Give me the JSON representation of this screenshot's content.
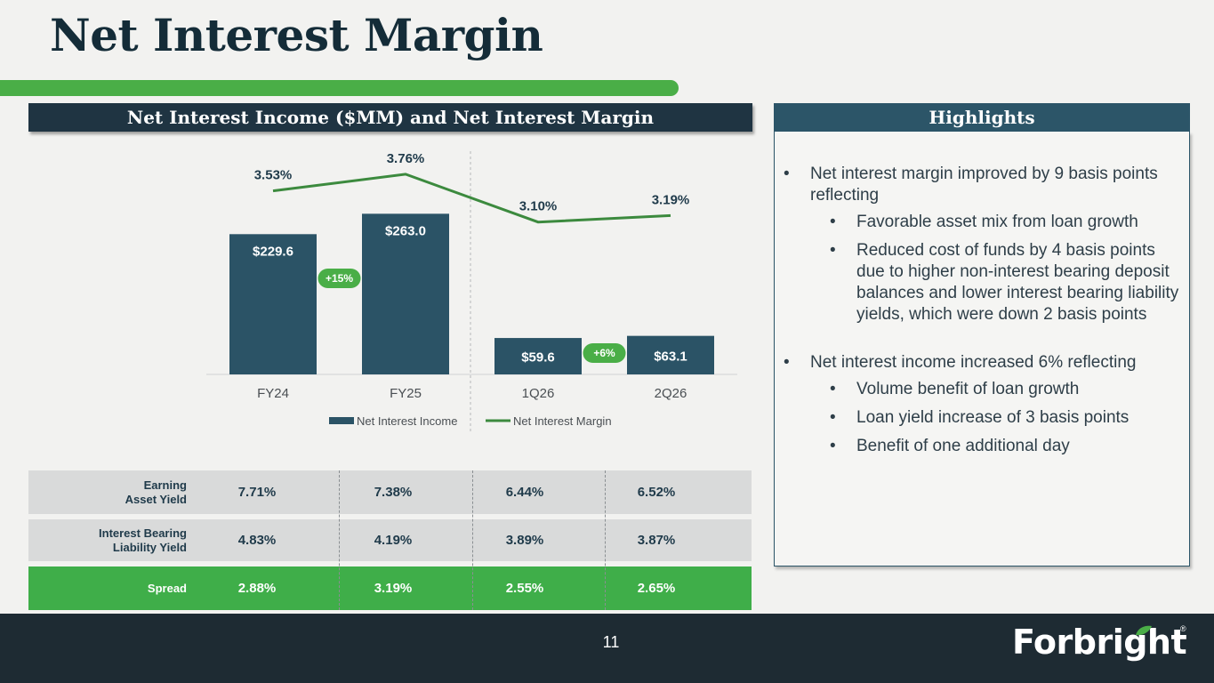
{
  "page": {
    "title": "Net Interest Margin",
    "page_number": "11"
  },
  "chart_section": {
    "heading": "Net Interest Income ($MM) and Net Interest Margin"
  },
  "highlights": {
    "heading": "Highlights",
    "items": [
      {
        "text": "Net interest margin improved by 9 basis points reflecting",
        "subitems": [
          "Favorable asset mix from loan growth",
          "Reduced cost of funds by 4 basis points due to higher non-interest bearing deposit balances and lower interest bearing liability yields, which were down 2 basis points"
        ]
      },
      {
        "text": "Net interest income increased 6% reflecting",
        "subitems": [
          "Volume benefit of loan growth",
          "Loan yield increase of 3 basis points",
          "Benefit of one additional day"
        ]
      }
    ]
  },
  "chart_data": {
    "type": "bar",
    "categories": [
      "FY24",
      "FY25",
      "1Q26",
      "2Q26"
    ],
    "series": [
      {
        "name": "Net Interest Income",
        "type": "bar",
        "values": [
          229.6,
          263.0,
          59.6,
          63.1
        ],
        "labels": [
          "$229.6",
          "$263.0",
          "$59.6",
          "$63.1"
        ]
      },
      {
        "name": "Net Interest Margin",
        "type": "line",
        "values": [
          3.53,
          3.76,
          3.1,
          3.19
        ],
        "labels": [
          "3.53%",
          "3.76%",
          "3.10%",
          "3.19%"
        ]
      }
    ],
    "growth_badges": [
      {
        "from": "FY24",
        "to": "FY25",
        "label": "+15%"
      },
      {
        "from": "1Q26",
        "to": "2Q26",
        "label": "+6%"
      }
    ],
    "bar_ylim": [
      0,
      380
    ],
    "line_ylim": [
      1.0,
      4.2
    ],
    "legend_position": "bottom",
    "colors": {
      "bar": "#2b5366",
      "line": "#3c8a3e",
      "badge": "#4aae47"
    }
  },
  "yield_table": {
    "rows": [
      {
        "label": [
          "Earning",
          "Asset Yield"
        ],
        "values": [
          "7.71%",
          "7.38%",
          "6.44%",
          "6.52%"
        ],
        "style": "gray"
      },
      {
        "label": [
          "Interest Bearing",
          "Liability Yield"
        ],
        "values": [
          "4.83%",
          "4.19%",
          "3.89%",
          "3.87%"
        ],
        "style": "gray"
      },
      {
        "label": [
          "Spread"
        ],
        "values": [
          "2.88%",
          "3.19%",
          "2.55%",
          "2.65%"
        ],
        "style": "green"
      }
    ]
  },
  "footer": {
    "logo_text": "Forbright",
    "registered_mark": "®"
  }
}
